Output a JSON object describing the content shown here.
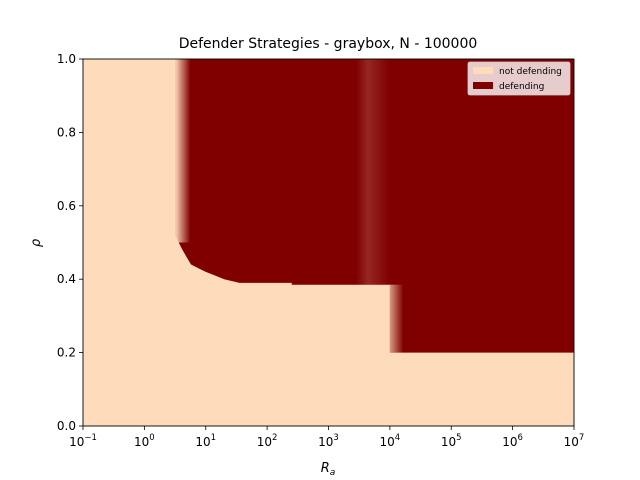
{
  "chart_data": {
    "type": "heatmap",
    "title": "Defender Strategies - graybox, N - 100000",
    "xlabel": "R_a",
    "ylabel": "ρ",
    "xscale": "log",
    "xlim_exponent": [
      -1,
      7
    ],
    "ylim": [
      0,
      1
    ],
    "x_ticks": [
      {
        "base": "10",
        "exp": "−1"
      },
      {
        "base": "10",
        "exp": "0"
      },
      {
        "base": "10",
        "exp": "1"
      },
      {
        "base": "10",
        "exp": "2"
      },
      {
        "base": "10",
        "exp": "3"
      },
      {
        "base": "10",
        "exp": "4"
      },
      {
        "base": "10",
        "exp": "5"
      },
      {
        "base": "10",
        "exp": "6"
      },
      {
        "base": "10",
        "exp": "7"
      }
    ],
    "y_ticks": [
      "0.0",
      "0.2",
      "0.4",
      "0.6",
      "0.8",
      "1.0"
    ],
    "legend_position": "top-right",
    "legend": [
      {
        "label": "not defending",
        "color": "#FDDBBB"
      },
      {
        "label": "defending",
        "color": "#800000"
      }
    ],
    "boundary_exponent_rho": [
      [
        0.5,
        1.0
      ],
      [
        0.5,
        0.52
      ],
      [
        0.56,
        0.5
      ],
      [
        0.62,
        0.48
      ],
      [
        0.69,
        0.46
      ],
      [
        0.76,
        0.44
      ],
      [
        0.88,
        0.43
      ],
      [
        1.0,
        0.42
      ],
      [
        1.15,
        0.41
      ],
      [
        1.3,
        0.4
      ],
      [
        1.55,
        0.39
      ],
      [
        2.4,
        0.39
      ],
      [
        2.4,
        0.385
      ],
      [
        4.0,
        0.385
      ],
      [
        4.0,
        0.2
      ],
      [
        7.0,
        0.2
      ]
    ]
  }
}
